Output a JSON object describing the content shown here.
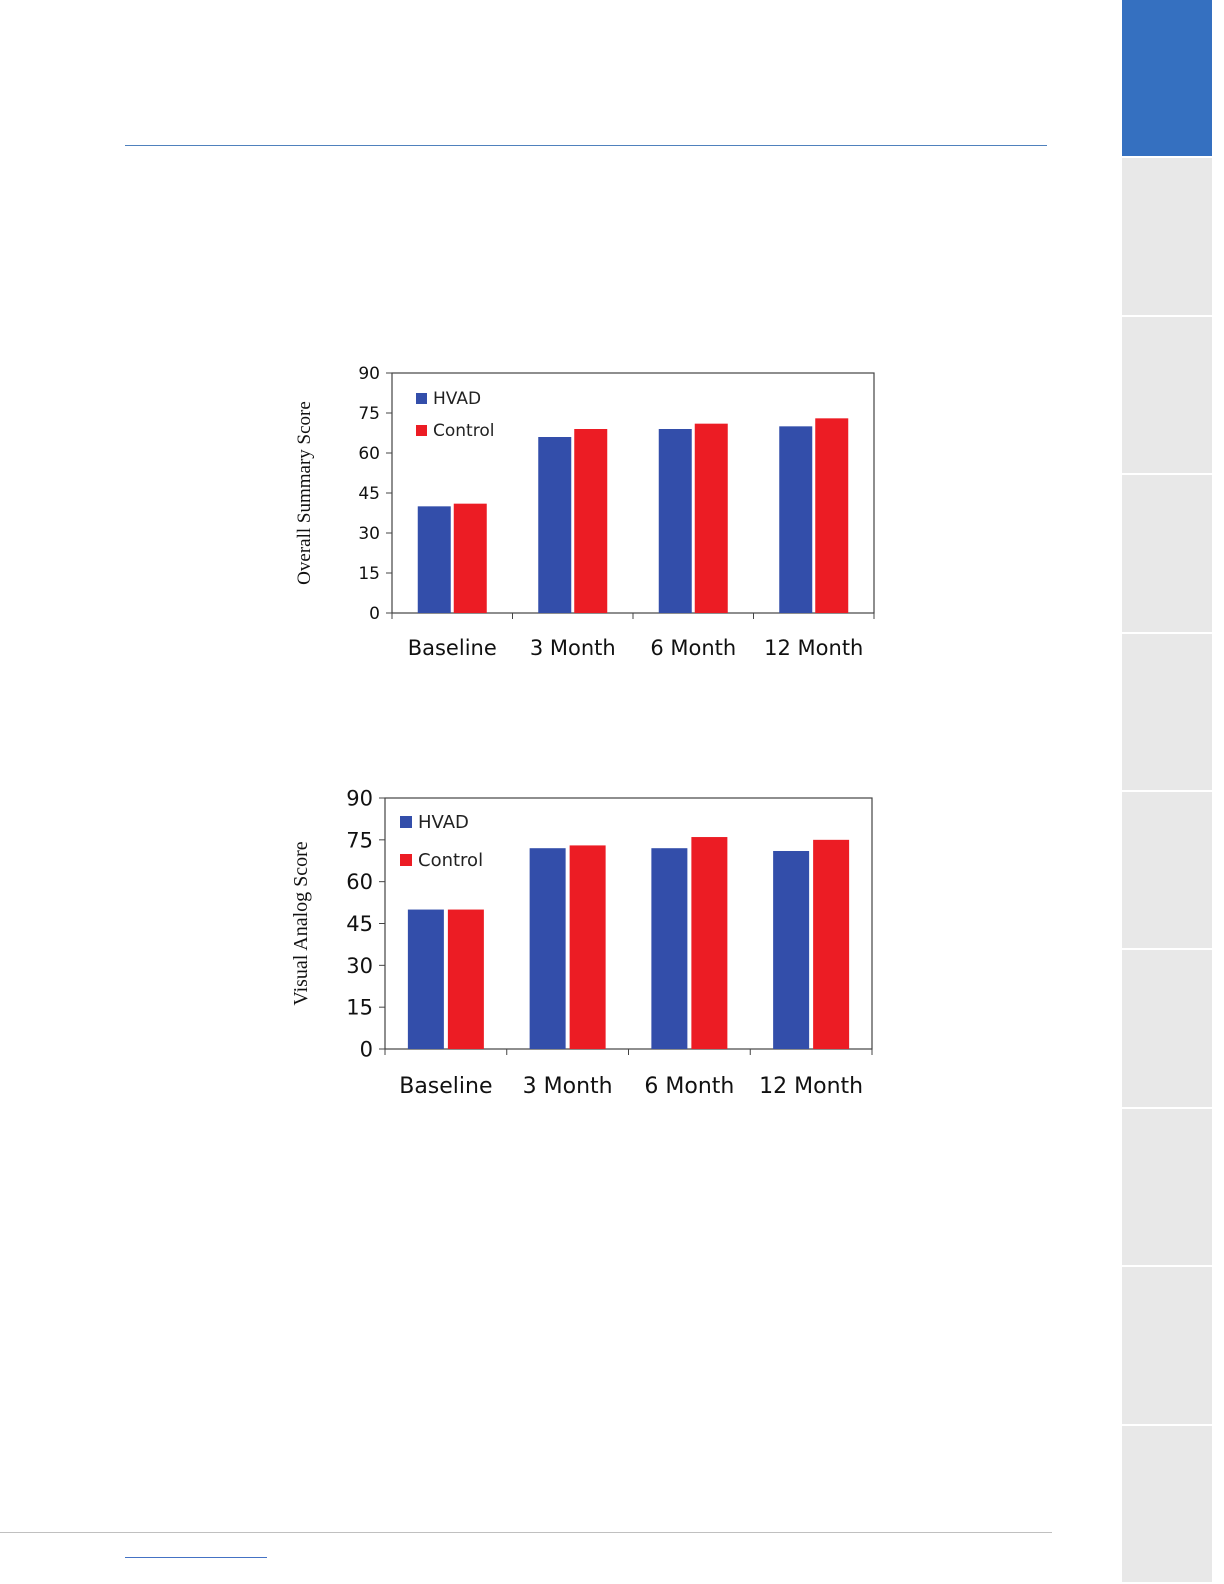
{
  "page": {
    "side_tabs": {
      "count": 10,
      "active_index": 0,
      "active_color": "#3570C0",
      "inactive_color": "#E8E8E8"
    }
  },
  "colors": {
    "HVAD": "#334EAA",
    "Control": "#EC1C24"
  },
  "chart_data": [
    {
      "type": "bar",
      "categories": [
        "Baseline",
        "3 Month",
        "6 Month",
        "12 Month"
      ],
      "series": [
        {
          "name": "HVAD",
          "values": [
            40,
            66,
            69,
            70
          ]
        },
        {
          "name": "Control",
          "values": [
            41,
            69,
            71,
            73
          ]
        }
      ],
      "title": "",
      "xlabel": "",
      "ylabel": "Overall  Summary  Score",
      "ylim": [
        0,
        90
      ],
      "yticks": [
        "0",
        "15",
        "30",
        "45",
        "60",
        "75",
        "90"
      ],
      "grid": false,
      "legend": "top-left"
    },
    {
      "type": "bar",
      "categories": [
        "Baseline",
        "3 Month",
        "6 Month",
        "12 Month"
      ],
      "series": [
        {
          "name": "HVAD",
          "values": [
            50,
            72,
            72,
            71
          ]
        },
        {
          "name": "Control",
          "values": [
            50,
            73,
            76,
            75
          ]
        }
      ],
      "title": "",
      "xlabel": "",
      "ylabel": "Visual Analog Score",
      "ylim": [
        0,
        90
      ],
      "yticks": [
        "0",
        "15",
        "30",
        "45",
        "60",
        "75",
        "90"
      ],
      "grid": false,
      "legend": "top-left"
    }
  ]
}
